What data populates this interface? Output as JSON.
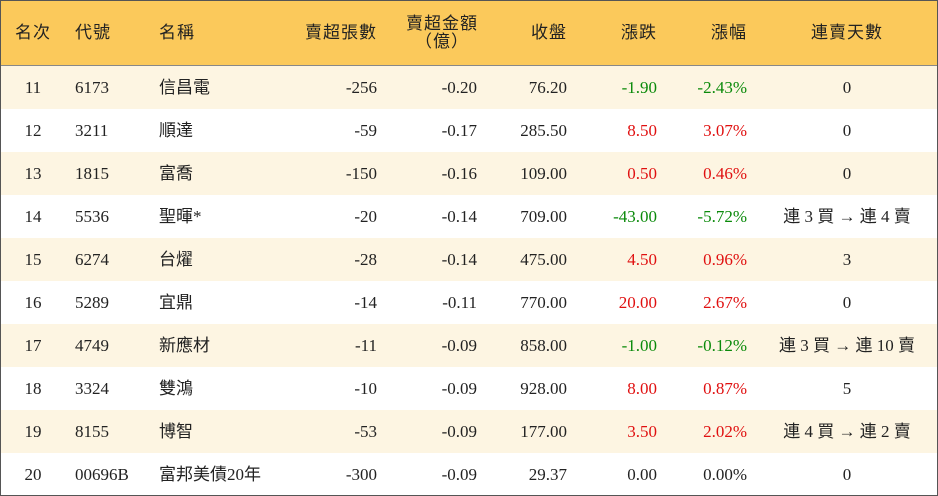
{
  "table": {
    "headers": [
      "名次",
      "代號",
      "名稱",
      "賣超張數",
      "賣超金額\n（億）",
      "收盤",
      "漲跌",
      "漲幅",
      "連賣天數"
    ],
    "rows": [
      [
        "11",
        "6173",
        "信昌電",
        "-256",
        "-0.20",
        "76.20",
        "-1.90",
        "-2.43%",
        "0"
      ],
      [
        "12",
        "3211",
        "順達",
        "-59",
        "-0.17",
        "285.50",
        "8.50",
        "3.07%",
        "0"
      ],
      [
        "13",
        "1815",
        "富喬",
        "-150",
        "-0.16",
        "109.00",
        "0.50",
        "0.46%",
        "0"
      ],
      [
        "14",
        "5536",
        "聖暉*",
        "-20",
        "-0.14",
        "709.00",
        "-43.00",
        "-5.72%",
        "連 3 買 → 連 4 賣"
      ],
      [
        "15",
        "6274",
        "台燿",
        "-28",
        "-0.14",
        "475.00",
        "4.50",
        "0.96%",
        "3"
      ],
      [
        "16",
        "5289",
        "宜鼎",
        "-14",
        "-0.11",
        "770.00",
        "20.00",
        "2.67%",
        "0"
      ],
      [
        "17",
        "4749",
        "新應材",
        "-11",
        "-0.09",
        "858.00",
        "-1.00",
        "-0.12%",
        "連 3 買 → 連 10 賣"
      ],
      [
        "18",
        "3324",
        "雙鴻",
        "-10",
        "-0.09",
        "928.00",
        "8.00",
        "0.87%",
        "5"
      ],
      [
        "19",
        "8155",
        "博智",
        "-53",
        "-0.09",
        "177.00",
        "3.50",
        "2.02%",
        "連 4 買 → 連 2 賣"
      ],
      [
        "20",
        "00696B",
        "富邦美債20年",
        "-300",
        "-0.09",
        "29.37",
        "0.00",
        "0.00%",
        "0"
      ]
    ]
  }
}
